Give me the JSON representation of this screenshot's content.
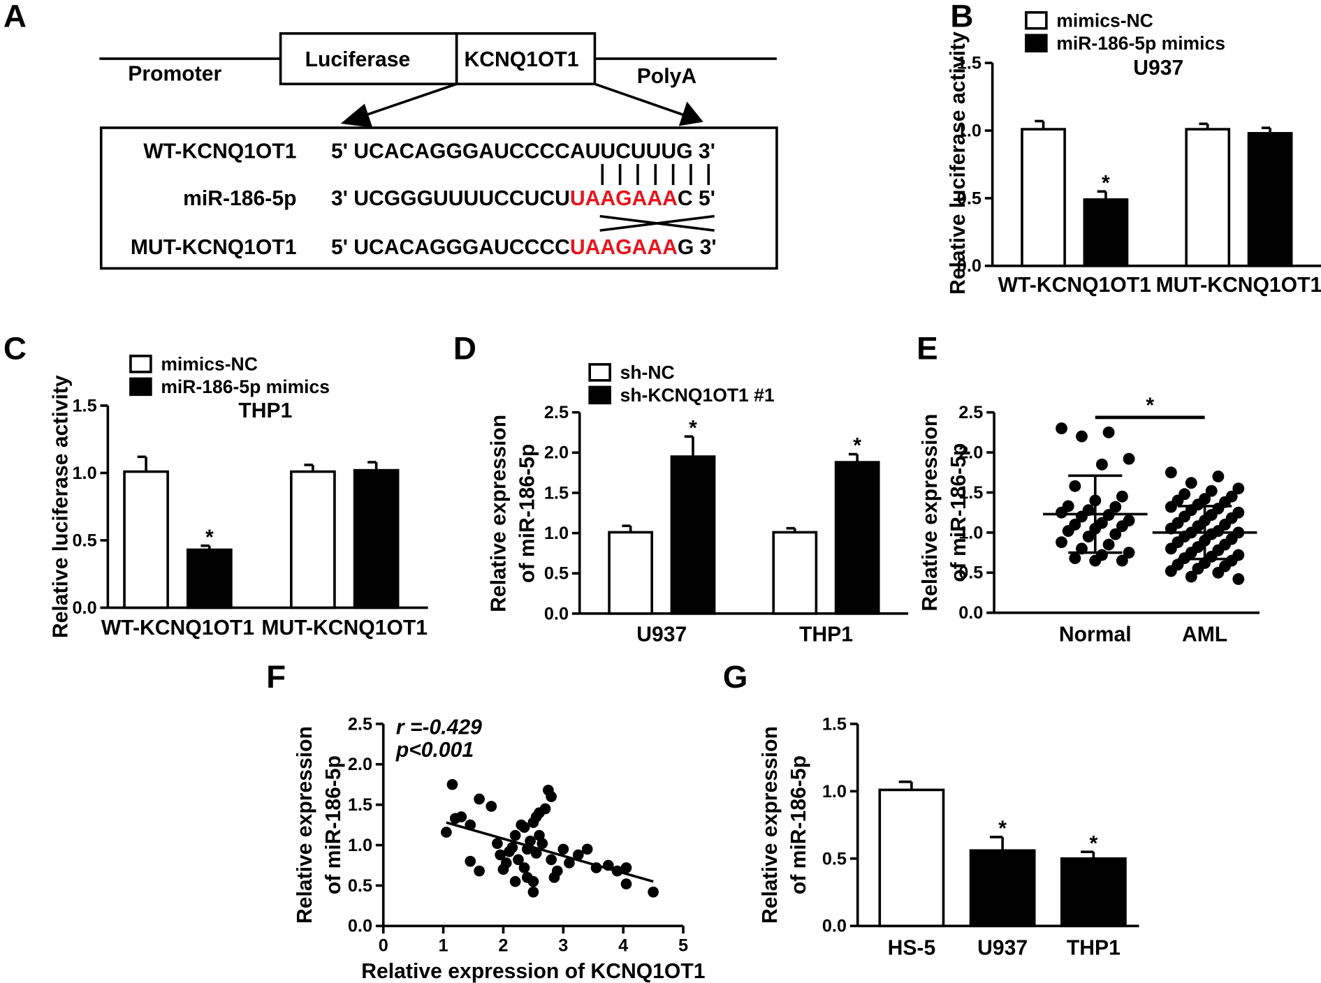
{
  "diagram": {
    "label": "A",
    "promoter": "Promoter",
    "luciferase": "Luciferase",
    "insert": "KCNQ1OT1",
    "polya": "PolyA",
    "rows": [
      {
        "name": "WT-KCNQ1OT1",
        "sequence": [
          {
            "text": "5' UCACAGGGAUCCCCAUUCUUUG 3'",
            "color": "#000000"
          }
        ]
      },
      {
        "name": "miR-186-5p",
        "sequence": [
          {
            "text": "3' UCGGGUUUUCCUCU",
            "color": "#000000"
          },
          {
            "text": "UAAGAAA",
            "color": "#e8131b"
          },
          {
            "text": "C 5'",
            "color": "#000000"
          }
        ]
      },
      {
        "name": "MUT-KCNQ1OT1",
        "sequence": [
          {
            "text": "5' UCACAGGGAUCCCC",
            "color": "#000000"
          },
          {
            "text": "UAAGAAA",
            "color": "#e8131b"
          },
          {
            "text": "G 3'",
            "color": "#000000"
          }
        ]
      }
    ]
  },
  "chart_data": [
    {
      "type": "bar",
      "label": "B",
      "subtitle": "U937",
      "ylabel": [
        "Relative luciferase activity"
      ],
      "categories": [
        "WT-KCNQ1OT1",
        "MUT-KCNQ1OT1"
      ],
      "series": [
        {
          "name": "mimics-NC",
          "color": "#ffffff",
          "values": [
            1.01,
            1.01
          ],
          "errors": [
            0.06,
            0.04
          ],
          "stars": [
            null,
            null
          ]
        },
        {
          "name": "miR-186-5p mimics",
          "color": "#000000",
          "values": [
            0.49,
            0.98
          ],
          "errors": [
            0.06,
            0.04
          ],
          "stars": [
            "*",
            null
          ]
        }
      ],
      "ylim": [
        0,
        1.5
      ],
      "yticks": [
        {
          "value": 0,
          "label": "0.0"
        },
        0.5,
        {
          "value": 1,
          "label": "1.0"
        },
        1.5
      ]
    },
    {
      "type": "bar",
      "label": "C",
      "subtitle": "THP1",
      "ylabel": [
        "Relative luciferase activity"
      ],
      "categories": [
        "WT-KCNQ1OT1",
        "MUT-KCNQ1OT1"
      ],
      "series": [
        {
          "name": "mimics-NC",
          "color": "#ffffff",
          "values": [
            1.01,
            1.01
          ],
          "errors": [
            0.11,
            0.05
          ],
          "stars": [
            null,
            null
          ]
        },
        {
          "name": "miR-186-5p mimics",
          "color": "#000000",
          "values": [
            0.43,
            1.02
          ],
          "errors": [
            0.03,
            0.06
          ],
          "stars": [
            "*",
            null
          ]
        }
      ],
      "ylim": [
        0,
        1.5
      ],
      "yticks": [
        {
          "value": 0,
          "label": "0.0"
        },
        0.5,
        {
          "value": 1,
          "label": "1.0"
        },
        1.5
      ]
    },
    {
      "type": "bar",
      "label": "D",
      "ylabel": [
        "Relative expression",
        "of miR-186-5p"
      ],
      "categories": [
        "U937",
        "THP1"
      ],
      "series": [
        {
          "name": "sh-NC",
          "color": "#ffffff",
          "values": [
            1.01,
            1.01
          ],
          "errors": [
            0.08,
            0.05
          ],
          "stars": [
            null,
            null
          ]
        },
        {
          "name": "sh-KCNQ1OT1 #1",
          "color": "#000000",
          "values": [
            1.95,
            1.88
          ],
          "errors": [
            0.25,
            0.1
          ],
          "stars": [
            "*",
            "*"
          ]
        }
      ],
      "ylim": [
        0,
        2.5
      ],
      "yticks": [
        {
          "value": 0,
          "label": "0.0"
        },
        0.5,
        {
          "value": 1,
          "label": "1.0"
        },
        1.5,
        {
          "value": 2,
          "label": "2.0"
        },
        2.5
      ]
    },
    {
      "type": "dot",
      "label": "E",
      "ylabel": [
        "Relative expression",
        "of miR-186-5p"
      ],
      "categories": [
        "Normal",
        "AML"
      ],
      "points": [
        [
          2.3,
          2.25,
          2.2,
          1.92,
          1.85,
          1.58,
          1.45,
          1.4,
          1.33,
          1.32,
          1.28,
          1.25,
          1.22,
          1.2,
          1.15,
          1.12,
          1.1,
          1.08,
          1.05,
          1.02,
          0.98,
          0.95,
          0.88,
          0.85,
          0.8,
          0.75,
          0.72,
          0.68,
          0.65,
          0.65
        ],
        [
          1.75,
          1.7,
          1.62,
          1.55,
          1.52,
          1.48,
          1.45,
          1.42,
          1.4,
          1.38,
          1.35,
          1.32,
          1.3,
          1.28,
          1.25,
          1.22,
          1.2,
          1.18,
          1.15,
          1.12,
          1.1,
          1.08,
          1.05,
          1.02,
          1.0,
          1.0,
          0.98,
          0.95,
          0.92,
          0.9,
          0.88,
          0.85,
          0.82,
          0.8,
          0.78,
          0.75,
          0.72,
          0.7,
          0.68,
          0.65,
          0.62,
          0.6,
          0.58,
          0.55,
          0.52,
          0.5,
          0.45,
          0.42
        ]
      ],
      "means": [
        1.23,
        1.0
      ],
      "sds": [
        0.48,
        0.33
      ],
      "bracket_label": "*",
      "ylim": [
        0,
        2.5
      ],
      "yticks": [
        {
          "value": 0,
          "label": "0.0"
        },
        0.5,
        {
          "value": 1,
          "label": "1.0"
        },
        1.5,
        {
          "value": 2,
          "label": "2.0"
        },
        2.5
      ]
    },
    {
      "type": "scatter",
      "label": "F",
      "ylabel": [
        "Relative expression",
        "of miR-186-5p"
      ],
      "xlabel": "Relative expression of KCNQ1OT1",
      "annotations": [
        "r =-0.429",
        "p<0.001"
      ],
      "x": [
        1.05,
        1.15,
        1.2,
        1.3,
        1.45,
        1.6,
        1.45,
        1.6,
        1.8,
        1.9,
        1.95,
        2.0,
        2.05,
        2.1,
        2.15,
        2.2,
        2.2,
        2.25,
        2.3,
        2.35,
        2.35,
        2.4,
        2.45,
        2.5,
        2.5,
        2.55,
        2.55,
        2.6,
        2.6,
        2.65,
        2.7,
        2.75,
        2.8,
        2.8,
        2.85,
        2.9,
        3.0,
        3.1,
        3.25,
        3.4,
        3.55,
        3.75,
        3.9,
        4.05,
        4.05,
        4.5,
        2.4,
        2.5
      ],
      "y": [
        1.16,
        1.75,
        1.33,
        1.35,
        1.25,
        1.57,
        0.8,
        0.68,
        1.48,
        1.02,
        0.88,
        0.7,
        0.78,
        0.92,
        0.97,
        1.12,
        0.55,
        0.82,
        1.25,
        1.22,
        0.72,
        0.95,
        1.05,
        1.28,
        0.42,
        1.35,
        0.9,
        1.4,
        1.12,
        1.02,
        1.45,
        1.68,
        1.6,
        0.82,
        0.6,
        0.68,
        0.95,
        0.78,
        0.88,
        0.95,
        0.72,
        0.75,
        0.68,
        0.72,
        0.52,
        0.42,
        0.6,
        0.55
      ],
      "fit": {
        "x": [
          1.05,
          4.5
        ],
        "y": [
          1.28,
          0.55
        ]
      },
      "xlim": [
        0,
        5
      ],
      "xticks": [
        0,
        1,
        2,
        3,
        4,
        5
      ],
      "ylim": [
        0,
        2.5
      ],
      "yticks": [
        {
          "value": 0,
          "label": "0.0"
        },
        0.5,
        {
          "value": 1,
          "label": "1.0"
        },
        1.5,
        {
          "value": 2,
          "label": "2.0"
        },
        2.5
      ]
    },
    {
      "type": "bar",
      "label": "G",
      "ylabel": [
        "Relative expression",
        "of miR-186-5p"
      ],
      "categories": [
        "HS-5",
        "U937",
        "THP1"
      ],
      "values": [
        1.01,
        0.56,
        0.5
      ],
      "errors": [
        0.06,
        0.1,
        0.05
      ],
      "colors": [
        "#ffffff",
        "#000000",
        "#000000"
      ],
      "stars": [
        null,
        "*",
        "*"
      ],
      "ylim": [
        0,
        1.5
      ],
      "yticks": [
        {
          "value": 0,
          "label": "0.0"
        },
        0.5,
        {
          "value": 1,
          "label": "1.0"
        },
        1.5
      ]
    }
  ]
}
